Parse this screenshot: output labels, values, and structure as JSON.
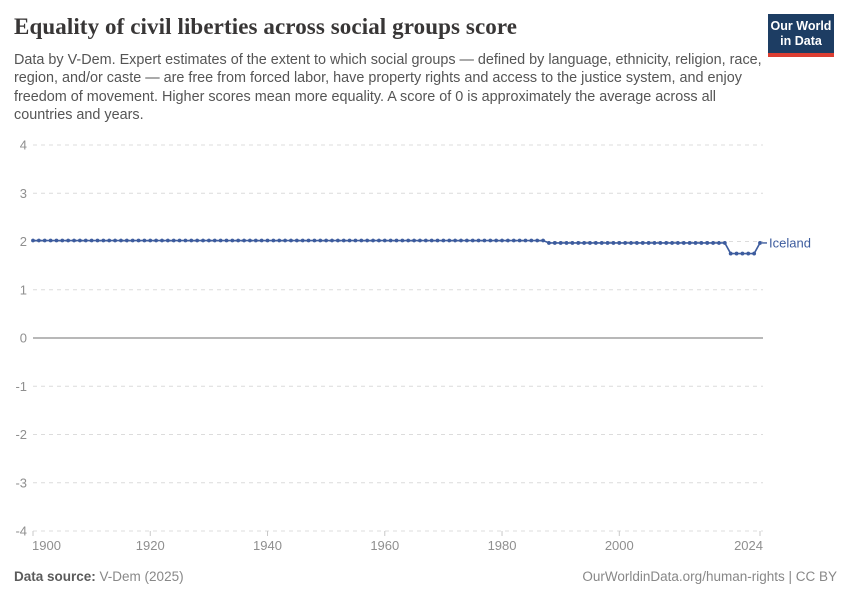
{
  "header": {
    "title": "Equality of civil liberties across social groups score",
    "subtitle": "Data by V-Dem. Expert estimates of the extent to which social groups — defined by language, ethnicity, religion, race, region, and/or caste — are free from forced labor, have property rights and access to the justice system, and enjoy freedom of movement. Higher scores mean more equality. A score of 0 is approximately the average across all countries and years.",
    "logo": {
      "line1": "Our World",
      "line2": "in Data",
      "bg_color": "#1d3d63",
      "stripe_color": "#dc3e32"
    }
  },
  "chart_data": {
    "type": "line",
    "title": "Equality of civil liberties across social groups score",
    "xlabel": "",
    "ylabel": "",
    "x": {
      "range": [
        1900,
        2024
      ],
      "ticks": [
        1900,
        1920,
        1940,
        1960,
        1980,
        2000,
        2024
      ]
    },
    "y": {
      "range": [
        -4,
        4
      ],
      "ticks": [
        4,
        3,
        2,
        1,
        0,
        -1,
        -2,
        -3,
        -4
      ],
      "gridlines": "dashed",
      "zero_line": "solid"
    },
    "series": [
      {
        "name": "Iceland",
        "color": "#3d5c9e",
        "markers": true,
        "points_as_segments": [
          {
            "from_year": 1900,
            "to_year": 1987,
            "value": 2.02
          },
          {
            "from_year": 1988,
            "to_year": 2018,
            "value": 1.97
          },
          {
            "from_year": 2019,
            "to_year": 2023,
            "value": 1.75
          },
          {
            "from_year": 2024,
            "to_year": 2024,
            "value": 1.97
          }
        ]
      }
    ],
    "legend_position": "end-of-line"
  },
  "footer": {
    "datasource_label": "Data source:",
    "datasource_value": "V-Dem (2025)",
    "credit": "OurWorldinData.org/human-rights | CC BY"
  },
  "colors": {
    "title": "#383636",
    "subtitle": "#555555",
    "axis_text": "#8f8f8f",
    "gridline": "#dcdcdc",
    "zero_line": "#a1a1a1",
    "tick": "#c8c8c8",
    "series_blue": "#3d5c9e",
    "logo_bg": "#1d3d63",
    "logo_stripe": "#dc3e32"
  }
}
